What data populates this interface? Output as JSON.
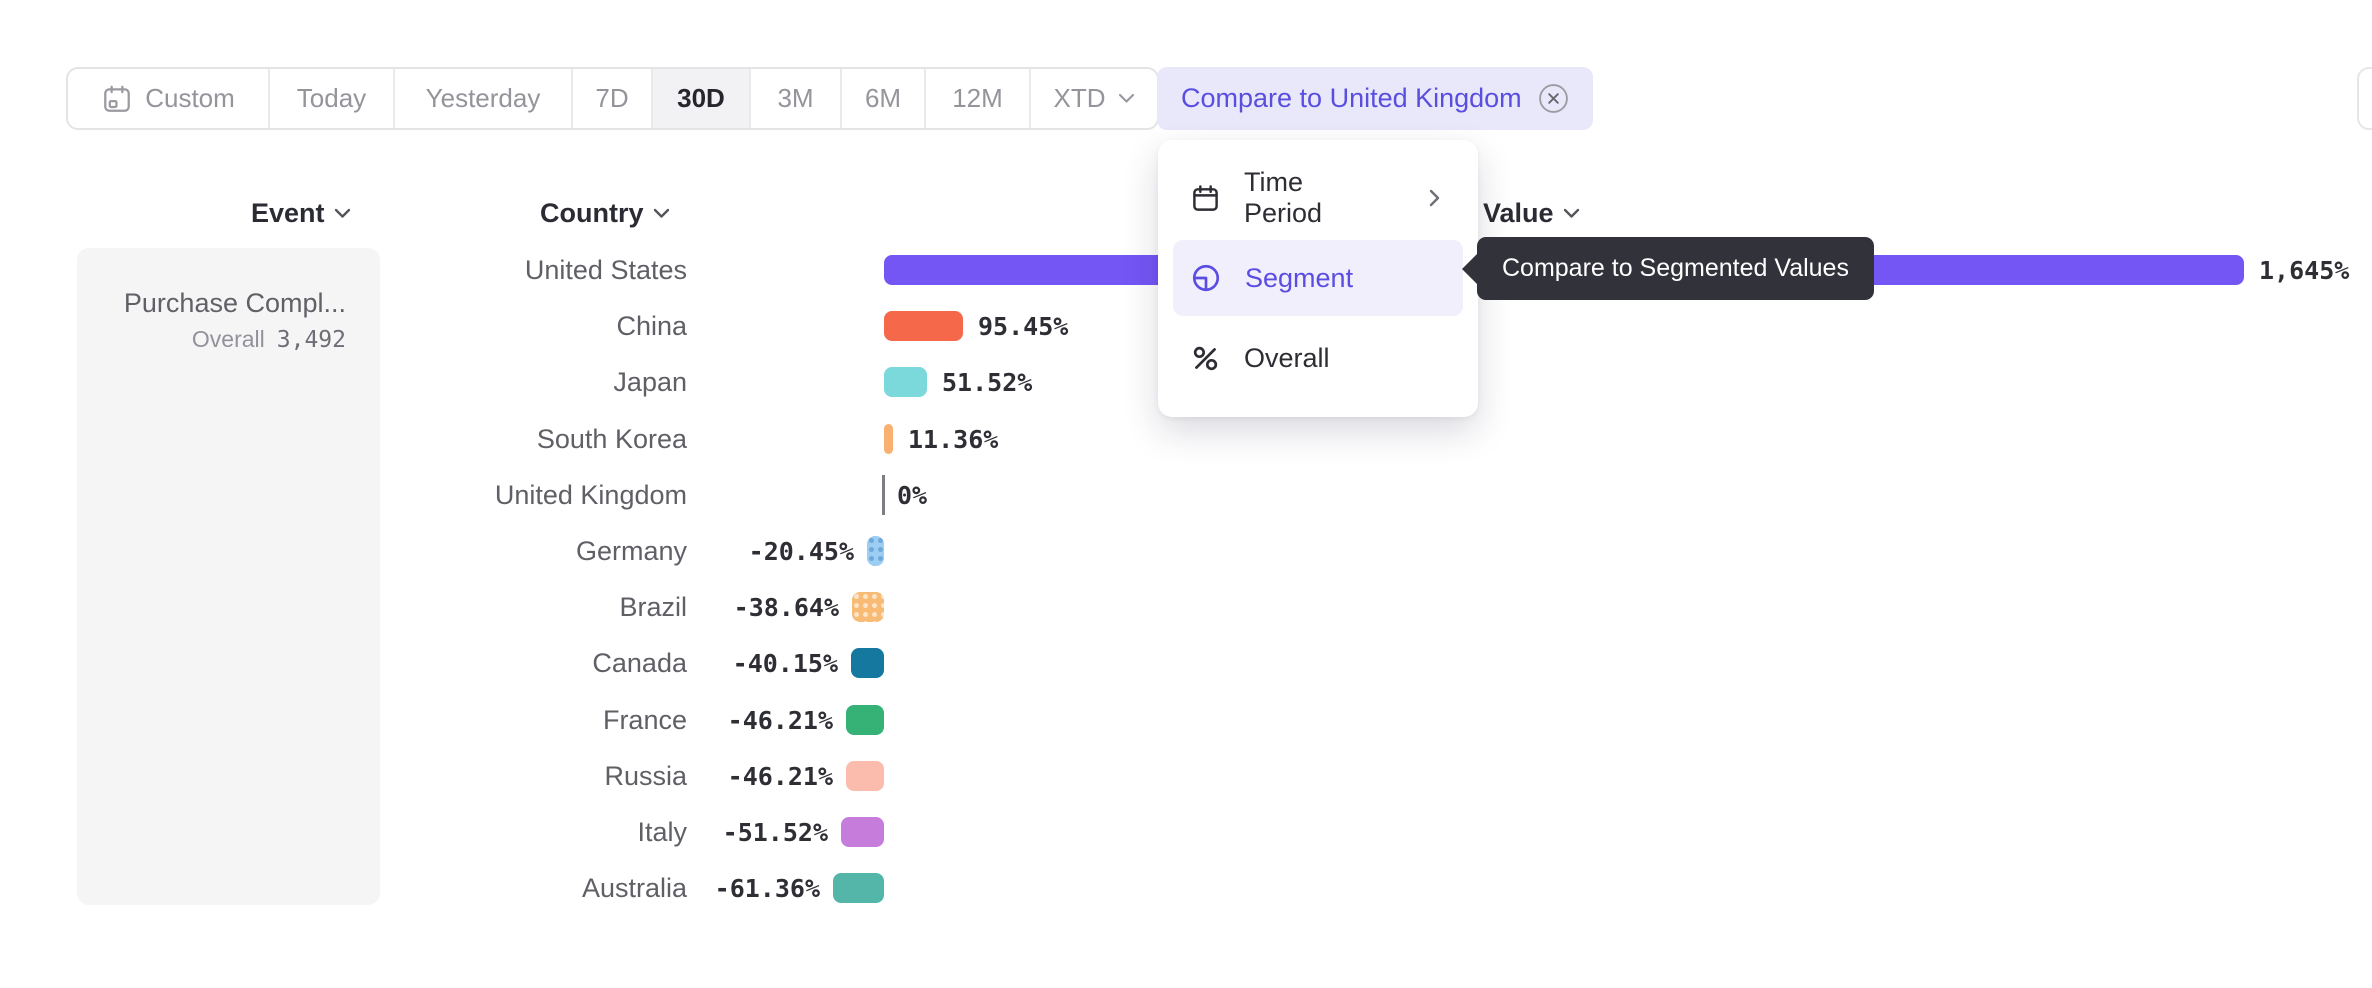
{
  "toolbar": {
    "items": [
      {
        "label": "Custom",
        "icon": "calendar-icon",
        "selected": false
      },
      {
        "label": "Today",
        "selected": false
      },
      {
        "label": "Yesterday",
        "selected": false
      },
      {
        "label": "7D",
        "selected": false
      },
      {
        "label": "30D",
        "selected": true
      },
      {
        "label": "3M",
        "selected": false
      },
      {
        "label": "6M",
        "selected": false
      },
      {
        "label": "12M",
        "selected": false
      },
      {
        "label": "XTD",
        "icon": "chevron-down-icon",
        "selected": false
      }
    ],
    "compare_chip": {
      "label": "Compare to United Kingdom",
      "close_icon": "circle-x-icon"
    }
  },
  "columns": [
    {
      "label": "Event"
    },
    {
      "label": "Country"
    },
    {
      "label": "Value"
    }
  ],
  "event_cell": {
    "name": "Purchase Compl...",
    "overall_label": "Overall",
    "overall_value": "3,492"
  },
  "menu": {
    "items": [
      {
        "label": "Time Period",
        "icon": "calendar-icon",
        "has_submenu": true,
        "selected": false
      },
      {
        "label": "Segment",
        "icon": "segment-icon",
        "has_submenu": false,
        "selected": true
      },
      {
        "label": "Overall",
        "icon": "percent-icon",
        "has_submenu": false,
        "selected": false
      }
    ]
  },
  "tooltip": {
    "text": "Compare to Segmented Values"
  },
  "colors": {
    "accent_purple": "#5b4de2",
    "chip_bg": "#e9e8fb",
    "menu_highlight": "#f1effc",
    "tooltip_bg": "#32323b",
    "selected_toolbar_bg": "#f2f2f4"
  },
  "chart_data": {
    "type": "bar",
    "orientation": "horizontal",
    "title": "",
    "xlabel": "Value",
    "ylabel": "Country",
    "unit": "%",
    "categories": [
      "United States",
      "China",
      "Japan",
      "South Korea",
      "United Kingdom",
      "Germany",
      "Brazil",
      "Canada",
      "France",
      "Russia",
      "Italy",
      "Australia"
    ],
    "values": [
      1645,
      95.45,
      51.52,
      11.36,
      0,
      -20.45,
      -38.64,
      -40.15,
      -46.21,
      -46.21,
      -51.52,
      -61.36
    ],
    "value_labels": [
      "1,645%",
      "95.45%",
      "51.52%",
      "11.36%",
      "0%",
      "-20.45%",
      "-38.64%",
      "-40.15%",
      "-46.21%",
      "-46.21%",
      "-51.52%",
      "-61.36%"
    ],
    "bar_colors": [
      "#7456f5",
      "#f5684a",
      "#7bd8db",
      "#f8b170",
      "#7d7d84",
      "#9ccdf3",
      "#f8bb76",
      "#15789e",
      "#36b277",
      "#fbbcad",
      "#c57cda",
      "#53b6a9"
    ],
    "patterned": [
      false,
      false,
      false,
      false,
      false,
      true,
      true,
      false,
      false,
      false,
      false,
      false
    ],
    "dot_colors": [
      "",
      "",
      "",
      "",
      "",
      "rgba(47,124,196,0.45)",
      "rgba(255,255,255,0.6)",
      "",
      "",
      "",
      "",
      ""
    ],
    "xlim": [
      -100,
      1700
    ],
    "zero_line": true,
    "legend": false
  }
}
